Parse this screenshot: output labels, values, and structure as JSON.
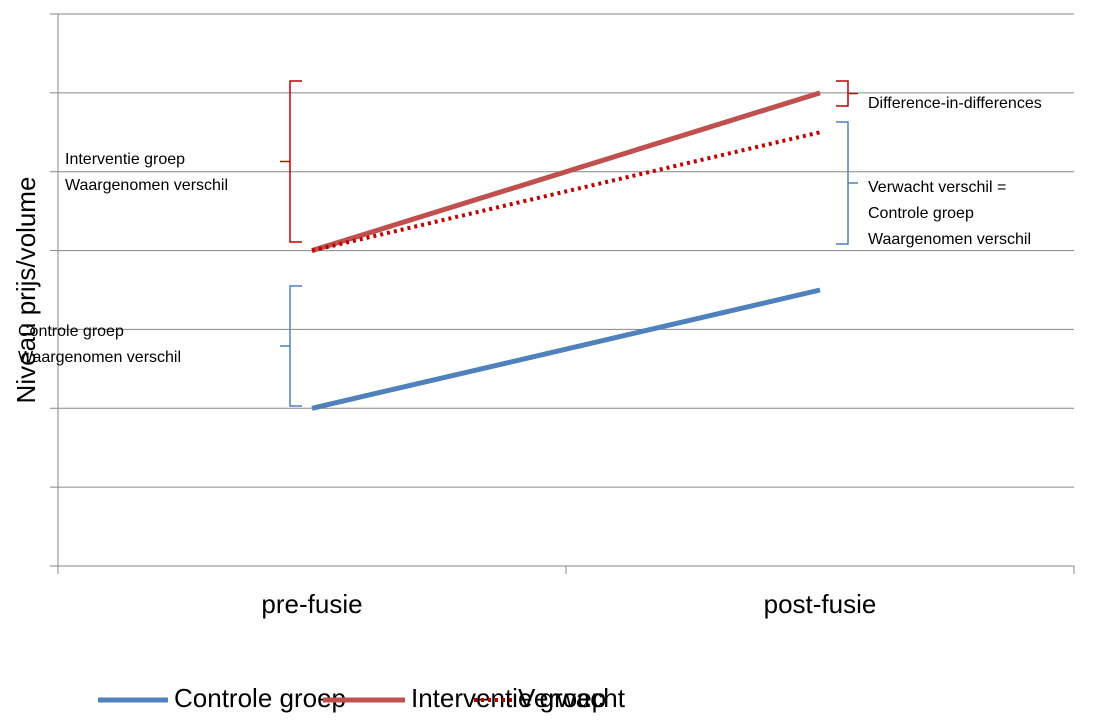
{
  "chart_data": {
    "type": "line",
    "y_label": "Niveau prijs/volume",
    "categories": [
      "pre-fusie",
      "post-fusie"
    ],
    "series": [
      {
        "name": "Controle groep",
        "color": "#4f81bd",
        "values": [
          2,
          3.5
        ],
        "style": "solid"
      },
      {
        "name": "Interventie groep",
        "color": "#c0504d",
        "values": [
          4,
          6
        ],
        "style": "solid"
      },
      {
        "name": "Verwacht",
        "color": "#c00000",
        "values": [
          4,
          5.5
        ],
        "style": "dotted"
      }
    ],
    "ylim": [
      0,
      7
    ],
    "yticks": [
      0,
      1,
      2,
      3,
      4,
      5,
      6,
      7
    ],
    "grid": true,
    "legend": "bottom",
    "annotations": [
      {
        "lines": [
          "Interventie groep",
          "Waargenomen verschil"
        ],
        "color": "#c00000"
      },
      {
        "lines": [
          "Controle groep",
          "Waargenomen verschil"
        ],
        "color": "#4f81bd"
      },
      {
        "lines": [
          "Difference-in-differences"
        ],
        "color": "#c00000"
      },
      {
        "lines": [
          "Verwacht verschil =",
          "Controle groep",
          "Waargenomen verschil"
        ],
        "color": "#4f81bd"
      }
    ]
  }
}
